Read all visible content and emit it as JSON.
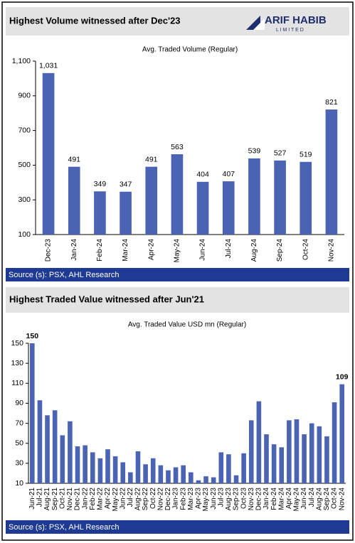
{
  "logo": {
    "name": "ARIF HABIB",
    "tagline": "L I M I T E D"
  },
  "chart_data": [
    {
      "type": "bar",
      "title": "Highest Volume witnessed after Dec'23",
      "subtitle": "Avg. Traded Volume (Regular)",
      "source": "Source (s): PSX, AHL Research",
      "categories": [
        "Dec-23",
        "Jan-24",
        "Feb-24",
        "Mar-24",
        "Apr-24",
        "May-24",
        "Jun-24",
        "Jul-24",
        "Aug-24",
        "Sep-24",
        "Oct-24",
        "Nov-24"
      ],
      "values": [
        1031,
        491,
        349,
        347,
        491,
        563,
        404,
        407,
        539,
        527,
        519,
        821
      ],
      "value_labels": [
        "1,031",
        "491",
        "349",
        "347",
        "491",
        "563",
        "404",
        "407",
        "539",
        "527",
        "519",
        "821"
      ],
      "color": "#4a63b3",
      "ylim": [
        100,
        1100
      ],
      "yticks": [
        100,
        300,
        500,
        700,
        900,
        {
          "value": 1100,
          "label": "1,100"
        }
      ]
    },
    {
      "type": "bar",
      "title": "Highest Traded Value witnessed after Jun'21",
      "subtitle": "Avg. Traded Value  USD mn (Regular)",
      "source": "Source (s): PSX, AHL Research",
      "categories": [
        "Jun-21",
        "Jul-21",
        "Aug-21",
        "Sep-21",
        "Oct-21",
        "Nov-21",
        "Dec-21",
        "Jan-22",
        "Feb-22",
        "Mar-22",
        "Apr-22",
        "May-22",
        "Jun-22",
        "Jul-22",
        "Aug-22",
        "Sep-22",
        "Oct-22",
        "Nov-22",
        "Dec-22",
        "Jan-23",
        "Feb-23",
        "Mar-23",
        "Apr-23",
        "May-23",
        "Jun-23",
        "Jul-23",
        "Aug-23",
        "Sep-23",
        "Oct-23",
        "Nov-23",
        "Dec-23",
        "Jan-24",
        "Feb-24",
        "Mar-24",
        "Apr-24",
        "May-24",
        "Jun-24",
        "Jul-24",
        "Aug-24",
        "Sep-24",
        "Oct-24",
        "Nov-24"
      ],
      "values": [
        150,
        93,
        78,
        83,
        58,
        72,
        47,
        48,
        41,
        35,
        44,
        37,
        31,
        21,
        42,
        29,
        35,
        28,
        23,
        26,
        28,
        21,
        13,
        17,
        16,
        41,
        39,
        18,
        40,
        73,
        92,
        59,
        49,
        46,
        73,
        74,
        59,
        70,
        67,
        57,
        91,
        109
      ],
      "value_labels": [
        "150",
        null,
        null,
        null,
        null,
        null,
        null,
        null,
        null,
        null,
        null,
        null,
        null,
        null,
        null,
        null,
        null,
        null,
        null,
        null,
        null,
        null,
        null,
        null,
        null,
        null,
        null,
        null,
        null,
        null,
        null,
        null,
        null,
        null,
        null,
        null,
        null,
        null,
        null,
        null,
        null,
        "109"
      ],
      "color": "#4a63b3",
      "ylim": [
        10,
        150
      ],
      "yticks": [
        10,
        30,
        50,
        70,
        90,
        110,
        130,
        150
      ]
    }
  ]
}
